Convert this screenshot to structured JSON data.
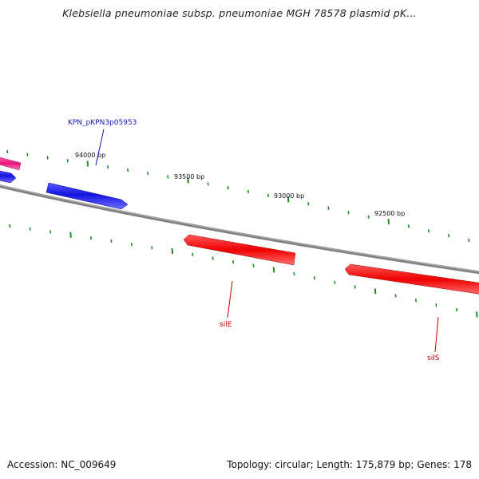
{
  "title": "Klebsiella pneumoniae subsp. pneumoniae MGH 78578 plasmid pK...",
  "footer": {
    "accession": "Accession: NC_009649",
    "topology": "Topology: circular; Length: 175,879 bp; Genes: 178"
  },
  "ruler_labels": [
    "94000 bp",
    "93500 bp",
    "93000 bp",
    "92500 bp"
  ],
  "genes": [
    {
      "name": "",
      "color": "#e8147d",
      "strand": "forward"
    },
    {
      "name": "",
      "color": "#1414e0",
      "strand": "forward"
    },
    {
      "name": "KPN_pKPN3p05953",
      "color": "#1414e0",
      "label_color": "#1414b4",
      "strand": "forward"
    },
    {
      "name": "silE",
      "color": "#ee0000",
      "label_color": "#cc0000",
      "strand": "reverse"
    },
    {
      "name": "silS",
      "color": "#ee0000",
      "label_color": "#cc0000",
      "strand": "reverse"
    }
  ],
  "colors": {
    "backbone": "#808080",
    "tick": "#1e8c1e",
    "forward_gene": "#1414e0",
    "reverse_gene": "#ee0000",
    "other_gene": "#e8147d"
  }
}
